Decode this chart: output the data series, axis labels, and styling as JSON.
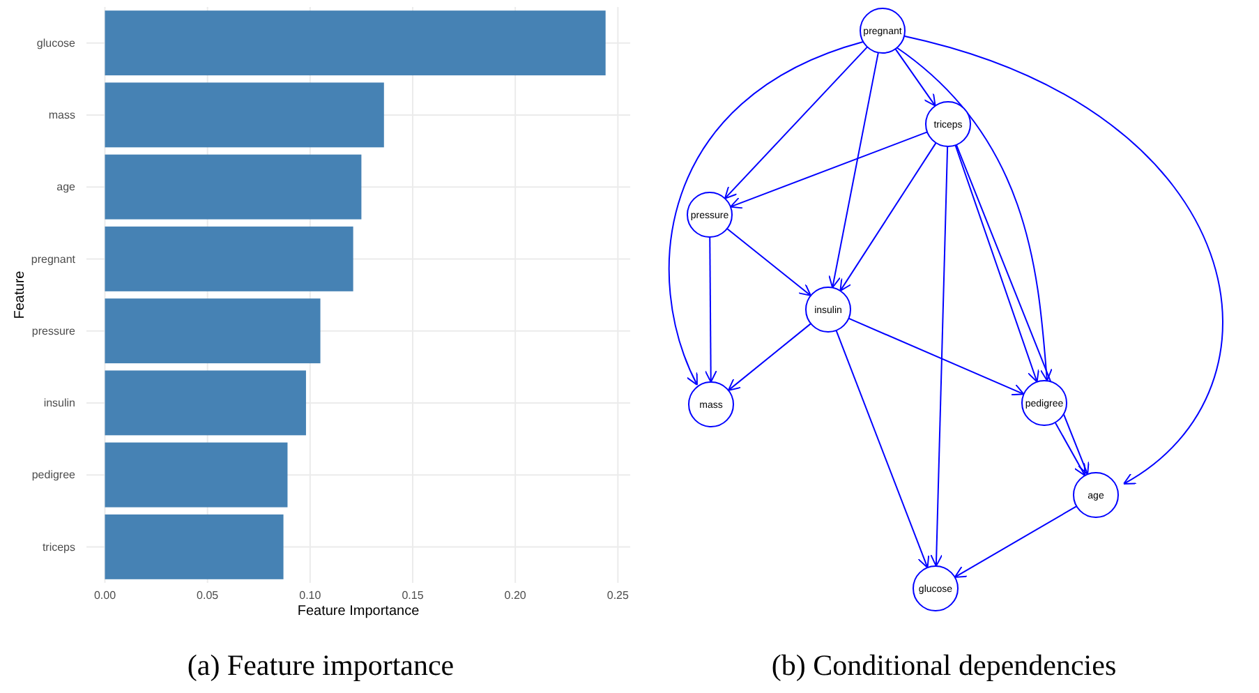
{
  "chart_data": [
    {
      "type": "bar",
      "orientation": "horizontal",
      "title": "(a) Feature importance",
      "xlabel": "Feature Importance",
      "ylabel": "Feature",
      "categories": [
        "glucose",
        "mass",
        "age",
        "pregnant",
        "pressure",
        "insulin",
        "pedigree",
        "triceps"
      ],
      "values": [
        0.244,
        0.136,
        0.125,
        0.121,
        0.105,
        0.098,
        0.089,
        0.087
      ],
      "color": "#4682b4",
      "xlim": [
        -0.009,
        0.256
      ],
      "xticks": [
        {
          "value": 0,
          "label": "0.00"
        },
        0.05,
        {
          "value": 0.1,
          "label": "0.10"
        },
        0.15,
        {
          "value": 0.2,
          "label": "0.20"
        },
        0.25
      ],
      "grid": true
    },
    {
      "type": "other",
      "title": "(b) Conditional dependencies",
      "annotations": [
        "pregnant",
        "triceps",
        "pressure",
        "insulin",
        "mass",
        "pedigree",
        "age",
        "glucose"
      ]
    }
  ]
}
